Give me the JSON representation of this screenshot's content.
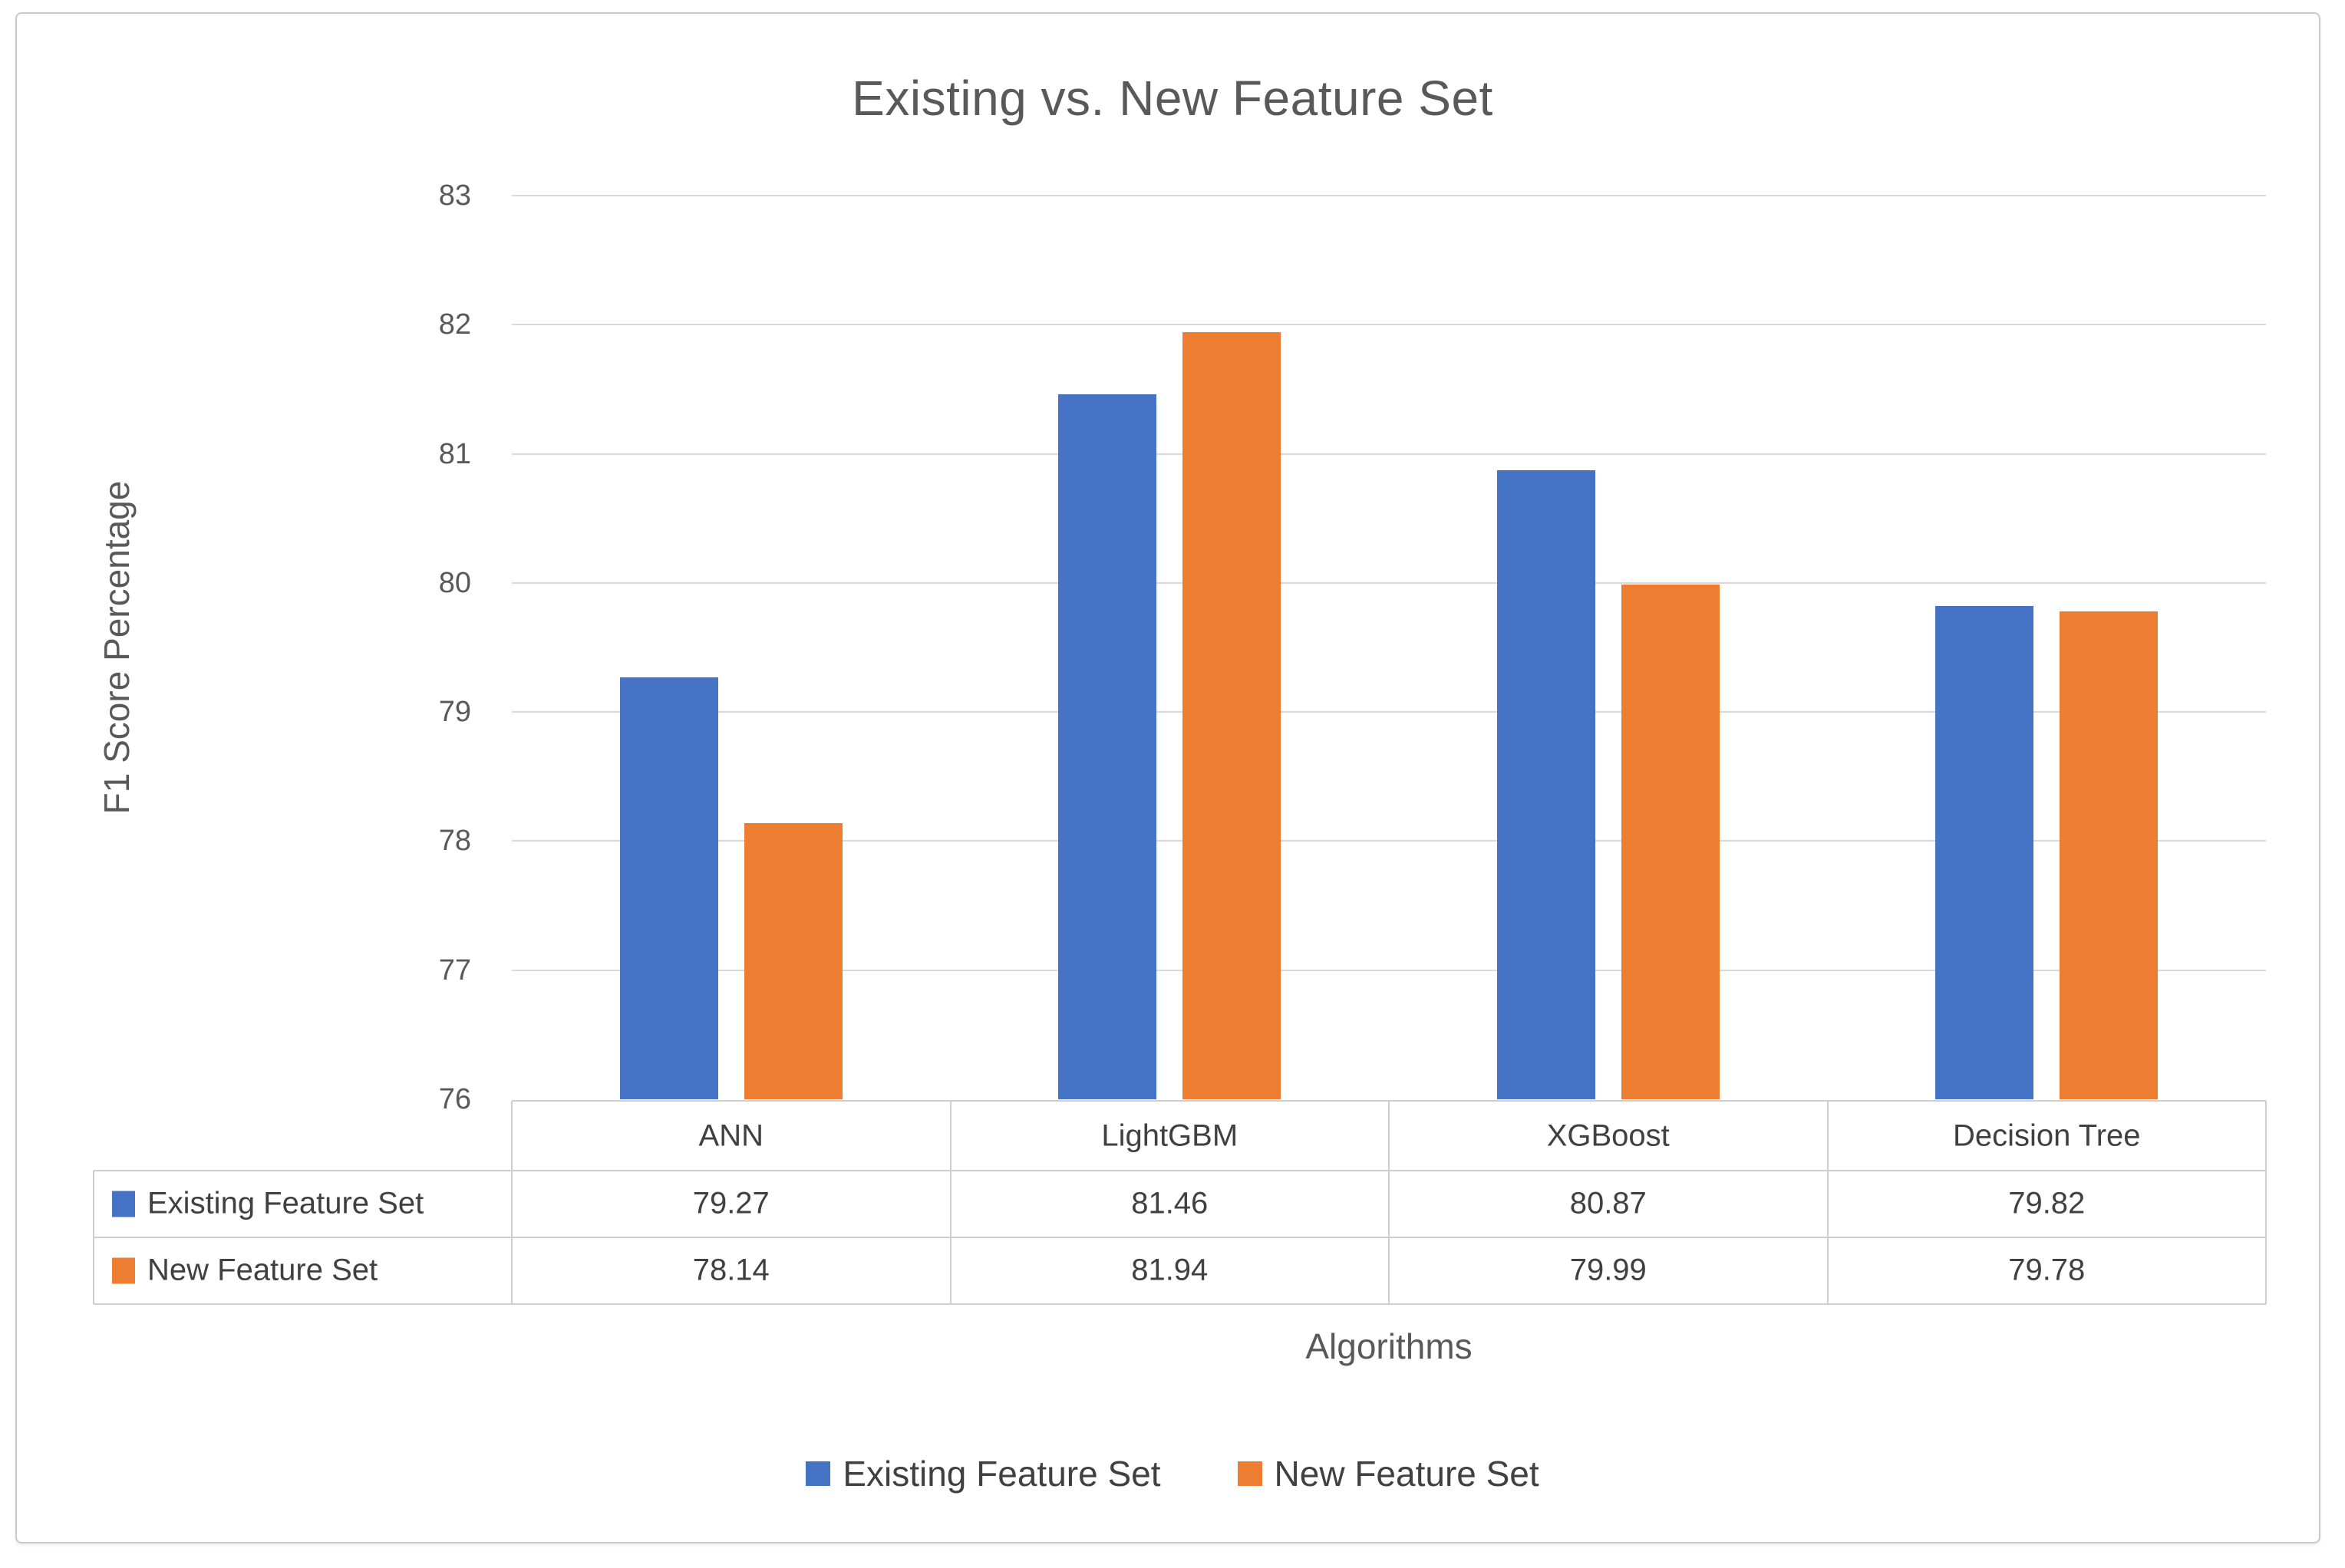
{
  "chart_data": {
    "type": "bar",
    "title": "Existing vs. New Feature Set",
    "xlabel": "Algorithms",
    "ylabel": "F1 Score Percentage",
    "categories": [
      "ANN",
      "LightGBM",
      "XGBoost",
      "Decision Tree"
    ],
    "series": [
      {
        "name": "Existing Feature Set",
        "color": "#4472C4",
        "values": [
          79.27,
          81.46,
          80.87,
          79.82
        ]
      },
      {
        "name": "New Feature Set",
        "color": "#ED7D31",
        "values": [
          78.14,
          81.94,
          79.99,
          79.78
        ]
      }
    ],
    "ylim": [
      76,
      83
    ],
    "ytick_labels": [
      "83",
      "82",
      "81",
      "80",
      "79",
      "78",
      "77",
      "76"
    ],
    "grid": true,
    "legend_position": "bottom",
    "show_data_table": true,
    "value_decimals": 2
  },
  "colors": {
    "series_blue": "#4472C4",
    "series_orange": "#ED7D31",
    "gridline": "#D9D9D9",
    "table_border": "#CFCFCF",
    "canvas_border": "#C9C9C9",
    "text_table": "#404040",
    "text_axis": "#595959"
  }
}
